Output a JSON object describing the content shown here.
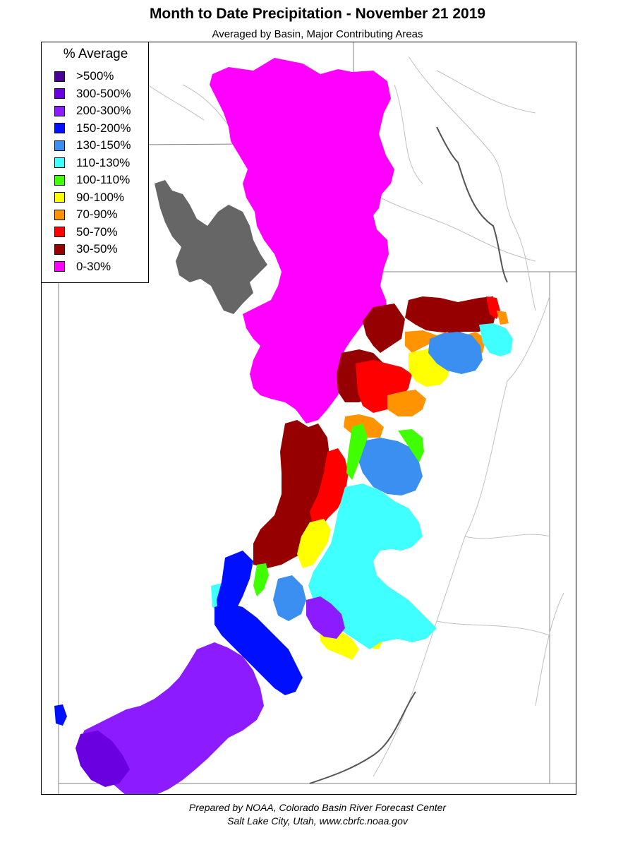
{
  "header": {
    "title": "Month to Date Precipitation - November 21 2019",
    "subtitle": "Averaged by Basin, Major Contributing Areas"
  },
  "legend": {
    "title": "% Average",
    "items": [
      {
        "label": ">500%",
        "color": "#4b0096"
      },
      {
        "label": "300-500%",
        "color": "#6a00e0"
      },
      {
        "label": "200-300%",
        "color": "#8c1cff"
      },
      {
        "label": "150-200%",
        "color": "#0010ff"
      },
      {
        "label": "130-150%",
        "color": "#3a8ff0"
      },
      {
        "label": "110-130%",
        "color": "#40ffff"
      },
      {
        "label": "100-110%",
        "color": "#40ff00"
      },
      {
        "label": "90-100%",
        "color": "#ffff00"
      },
      {
        "label": "70-90%",
        "color": "#ff9400"
      },
      {
        "label": "50-70%",
        "color": "#ff0000"
      },
      {
        "label": "30-50%",
        "color": "#960000"
      },
      {
        "label": "0-30%",
        "color": "#ff00ff"
      }
    ]
  },
  "map": {
    "lake_color": "#666666",
    "boundary_color": "#808080",
    "river_color": "#c0c0c0"
  },
  "footer": {
    "line1": "Prepared by NOAA, Colorado Basin River Forecast Center",
    "line2": "Salt Lake City, Utah, www.cbrfc.noaa.gov"
  }
}
